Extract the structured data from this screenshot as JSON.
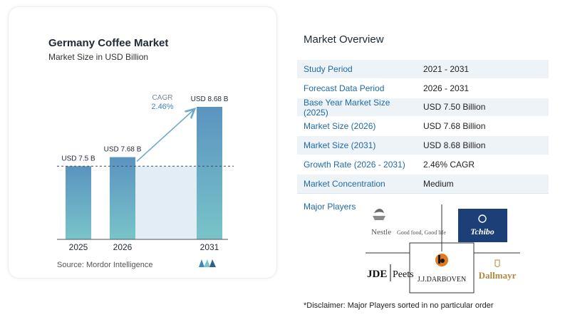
{
  "chart_data": {
    "type": "bar",
    "title": "Germany Coffee Market",
    "subtitle": "Market Size in USD Billion",
    "categories": [
      "2025",
      "2026",
      "2031"
    ],
    "values": [
      7.5,
      7.68,
      8.68
    ],
    "value_labels": [
      "USD 7.5 B",
      "USD 7.68 B",
      "USD 8.68 B"
    ],
    "cagr_label": "CAGR",
    "cagr_value": "2.46%",
    "xlabel": "",
    "ylabel": "",
    "colors": {
      "bar_top": "#5b93c0",
      "bar_bottom": "#79c4c9",
      "band": "#e3edf5",
      "arrow": "#6aa9cf"
    }
  },
  "source": "Source:  Mordor Intelligence",
  "overview": {
    "title": "Market Overview",
    "rows": [
      {
        "key": "Study Period",
        "value": "2021 - 2031"
      },
      {
        "key": "Forecast Data Period",
        "value": "2026 - 2031"
      },
      {
        "key": "Base Year Market Size (2025)",
        "value": "USD 7.50 Billion"
      },
      {
        "key": "Market Size (2026)",
        "value": "USD 7.68 Billion"
      },
      {
        "key": "Market Size (2031)",
        "value": "USD 8.68 Billion"
      },
      {
        "key": "Growth Rate (2026 - 2031)",
        "value": "2.46% CAGR"
      },
      {
        "key": "Market Concentration",
        "value": "Medium"
      }
    ]
  },
  "players": {
    "label": "Major Players",
    "logos": {
      "nestle_name": "Nestle",
      "nestle_tagline": "Good food, Good life",
      "tchibo": "Tchibo",
      "jde": "JDE",
      "peets": "Peets",
      "darboven": "J.J.DARBOVEN",
      "dallmayr": "Dallmayr"
    }
  },
  "disclaimer": "*Disclaimer: Major Players sorted in no particular order"
}
